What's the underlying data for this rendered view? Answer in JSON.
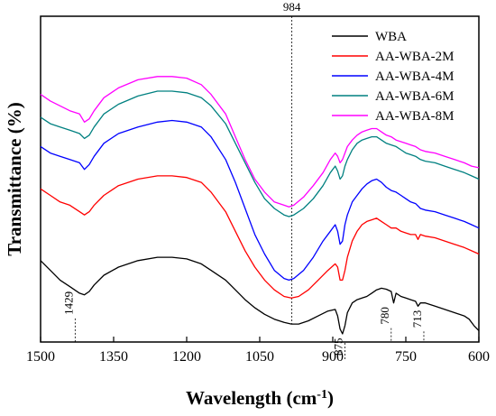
{
  "chart_data": {
    "type": "line",
    "xlabel": "Wavelength (cm",
    "xlabel_sup": "-1",
    "xlabel_close": ")",
    "ylabel": "Transmittance (%)",
    "xlim": [
      1500,
      600
    ],
    "x_reversed": true,
    "xticks": [
      1500,
      1350,
      1200,
      1050,
      900,
      750,
      600
    ],
    "ylim": [
      0,
      100
    ],
    "y_ticks_shown": false,
    "legend_position": "top-right",
    "series": [
      {
        "name": "WBA",
        "color": "#000000",
        "points": [
          [
            1500,
            25
          ],
          [
            1480,
            22
          ],
          [
            1460,
            19
          ],
          [
            1440,
            17
          ],
          [
            1420,
            15
          ],
          [
            1410,
            14.5
          ],
          [
            1400,
            15.5
          ],
          [
            1390,
            17.5
          ],
          [
            1370,
            20.5
          ],
          [
            1340,
            23
          ],
          [
            1300,
            25
          ],
          [
            1260,
            26
          ],
          [
            1230,
            26
          ],
          [
            1200,
            25.5
          ],
          [
            1170,
            24
          ],
          [
            1150,
            22
          ],
          [
            1120,
            19
          ],
          [
            1100,
            16
          ],
          [
            1080,
            13
          ],
          [
            1060,
            10.5
          ],
          [
            1040,
            8.5
          ],
          [
            1020,
            7
          ],
          [
            1000,
            6
          ],
          [
            985,
            5.5
          ],
          [
            970,
            5.5
          ],
          [
            950,
            6.5
          ],
          [
            930,
            8
          ],
          [
            910,
            9.5
          ],
          [
            895,
            10
          ],
          [
            890,
            8
          ],
          [
            885,
            4
          ],
          [
            880,
            2.5
          ],
          [
            875,
            5
          ],
          [
            870,
            9
          ],
          [
            860,
            12
          ],
          [
            850,
            13
          ],
          [
            840,
            13.5
          ],
          [
            830,
            14
          ],
          [
            820,
            15
          ],
          [
            810,
            16
          ],
          [
            800,
            16.5
          ],
          [
            790,
            16.2
          ],
          [
            780,
            15.5
          ],
          [
            775,
            12
          ],
          [
            770,
            15
          ],
          [
            760,
            14
          ],
          [
            750,
            13.5
          ],
          [
            740,
            13
          ],
          [
            730,
            12.5
          ],
          [
            725,
            11
          ],
          [
            720,
            12
          ],
          [
            710,
            12
          ],
          [
            690,
            11
          ],
          [
            670,
            10
          ],
          [
            650,
            9
          ],
          [
            630,
            8
          ],
          [
            620,
            7
          ],
          [
            610,
            5
          ],
          [
            600,
            3.5
          ]
        ]
      },
      {
        "name": "AA-WBA-2M",
        "color": "#ff0000",
        "points": [
          [
            1500,
            47
          ],
          [
            1480,
            45
          ],
          [
            1460,
            43
          ],
          [
            1440,
            42
          ],
          [
            1420,
            40
          ],
          [
            1410,
            39
          ],
          [
            1400,
            40
          ],
          [
            1390,
            42
          ],
          [
            1370,
            45
          ],
          [
            1340,
            48
          ],
          [
            1300,
            50
          ],
          [
            1260,
            51
          ],
          [
            1230,
            51
          ],
          [
            1200,
            50.5
          ],
          [
            1170,
            49
          ],
          [
            1150,
            46
          ],
          [
            1120,
            40
          ],
          [
            1100,
            34
          ],
          [
            1080,
            28
          ],
          [
            1060,
            23
          ],
          [
            1040,
            19
          ],
          [
            1020,
            16
          ],
          [
            1000,
            14
          ],
          [
            985,
            13.5
          ],
          [
            970,
            14
          ],
          [
            950,
            16
          ],
          [
            930,
            19
          ],
          [
            910,
            22
          ],
          [
            895,
            24
          ],
          [
            890,
            23
          ],
          [
            885,
            19
          ],
          [
            880,
            19
          ],
          [
            875,
            22
          ],
          [
            870,
            26
          ],
          [
            860,
            31
          ],
          [
            850,
            34
          ],
          [
            840,
            36
          ],
          [
            830,
            37
          ],
          [
            820,
            37.5
          ],
          [
            810,
            38
          ],
          [
            800,
            37
          ],
          [
            790,
            36
          ],
          [
            780,
            35
          ],
          [
            770,
            35
          ],
          [
            760,
            34
          ],
          [
            750,
            33.5
          ],
          [
            740,
            33
          ],
          [
            730,
            33
          ],
          [
            725,
            31.5
          ],
          [
            720,
            33
          ],
          [
            710,
            32.5
          ],
          [
            690,
            32
          ],
          [
            670,
            31
          ],
          [
            650,
            30
          ],
          [
            630,
            29
          ],
          [
            615,
            28
          ],
          [
            600,
            27
          ]
        ]
      },
      {
        "name": "AA-WBA-4M",
        "color": "#0000ff",
        "points": [
          [
            1500,
            60
          ],
          [
            1480,
            58
          ],
          [
            1460,
            57
          ],
          [
            1440,
            56
          ],
          [
            1420,
            55
          ],
          [
            1410,
            53
          ],
          [
            1400,
            54.5
          ],
          [
            1390,
            57
          ],
          [
            1370,
            61
          ],
          [
            1340,
            64
          ],
          [
            1300,
            66
          ],
          [
            1260,
            67.5
          ],
          [
            1230,
            68
          ],
          [
            1200,
            67.5
          ],
          [
            1170,
            66
          ],
          [
            1150,
            63
          ],
          [
            1120,
            56
          ],
          [
            1100,
            49
          ],
          [
            1080,
            41
          ],
          [
            1060,
            33
          ],
          [
            1040,
            27
          ],
          [
            1020,
            22
          ],
          [
            1000,
            19.5
          ],
          [
            990,
            19
          ],
          [
            980,
            19.5
          ],
          [
            960,
            22
          ],
          [
            940,
            26
          ],
          [
            920,
            31
          ],
          [
            905,
            34
          ],
          [
            895,
            36
          ],
          [
            890,
            34
          ],
          [
            885,
            30
          ],
          [
            880,
            31
          ],
          [
            875,
            36
          ],
          [
            870,
            39
          ],
          [
            860,
            43
          ],
          [
            850,
            45
          ],
          [
            840,
            47
          ],
          [
            830,
            48.5
          ],
          [
            820,
            49.5
          ],
          [
            810,
            50
          ],
          [
            800,
            49
          ],
          [
            790,
            47.5
          ],
          [
            780,
            46.5
          ],
          [
            770,
            46
          ],
          [
            760,
            45
          ],
          [
            750,
            44
          ],
          [
            740,
            43
          ],
          [
            730,
            42.5
          ],
          [
            720,
            41
          ],
          [
            710,
            40.5
          ],
          [
            690,
            40
          ],
          [
            670,
            39
          ],
          [
            650,
            38
          ],
          [
            630,
            37
          ],
          [
            615,
            36
          ],
          [
            600,
            35
          ]
        ]
      },
      {
        "name": "AA-WBA-6M",
        "color": "#008080",
        "points": [
          [
            1500,
            69
          ],
          [
            1480,
            67
          ],
          [
            1460,
            66
          ],
          [
            1440,
            65
          ],
          [
            1420,
            64
          ],
          [
            1410,
            62.5
          ],
          [
            1400,
            63.5
          ],
          [
            1390,
            66
          ],
          [
            1370,
            70
          ],
          [
            1340,
            73
          ],
          [
            1300,
            75.5
          ],
          [
            1260,
            77
          ],
          [
            1230,
            77
          ],
          [
            1200,
            76.5
          ],
          [
            1170,
            75
          ],
          [
            1150,
            72.5
          ],
          [
            1120,
            67
          ],
          [
            1100,
            61
          ],
          [
            1080,
            55
          ],
          [
            1060,
            49
          ],
          [
            1040,
            44
          ],
          [
            1020,
            41
          ],
          [
            1000,
            39
          ],
          [
            990,
            38.5
          ],
          [
            980,
            39
          ],
          [
            960,
            41
          ],
          [
            940,
            44
          ],
          [
            920,
            48
          ],
          [
            905,
            52
          ],
          [
            895,
            54
          ],
          [
            890,
            52.5
          ],
          [
            885,
            50
          ],
          [
            880,
            51
          ],
          [
            875,
            54
          ],
          [
            870,
            56
          ],
          [
            860,
            59
          ],
          [
            850,
            61
          ],
          [
            840,
            62
          ],
          [
            830,
            62.5
          ],
          [
            820,
            63
          ],
          [
            810,
            63
          ],
          [
            800,
            62
          ],
          [
            790,
            61
          ],
          [
            780,
            60.5
          ],
          [
            770,
            60
          ],
          [
            760,
            59
          ],
          [
            750,
            58
          ],
          [
            740,
            57.5
          ],
          [
            730,
            57
          ],
          [
            720,
            56
          ],
          [
            710,
            55.5
          ],
          [
            690,
            55
          ],
          [
            670,
            54
          ],
          [
            650,
            53
          ],
          [
            630,
            52
          ],
          [
            615,
            51
          ],
          [
            600,
            50
          ]
        ]
      },
      {
        "name": "AA-WBA-8M",
        "color": "#ff00ff",
        "points": [
          [
            1500,
            76
          ],
          [
            1480,
            74
          ],
          [
            1460,
            72.5
          ],
          [
            1440,
            71
          ],
          [
            1420,
            70
          ],
          [
            1410,
            67.5
          ],
          [
            1400,
            68.5
          ],
          [
            1390,
            71
          ],
          [
            1370,
            75
          ],
          [
            1340,
            78
          ],
          [
            1300,
            80.5
          ],
          [
            1260,
            81.5
          ],
          [
            1230,
            81.5
          ],
          [
            1200,
            81
          ],
          [
            1170,
            79
          ],
          [
            1150,
            76
          ],
          [
            1120,
            70
          ],
          [
            1100,
            63
          ],
          [
            1080,
            56
          ],
          [
            1060,
            50
          ],
          [
            1040,
            46
          ],
          [
            1020,
            43
          ],
          [
            1000,
            42
          ],
          [
            990,
            41.5
          ],
          [
            980,
            42
          ],
          [
            960,
            44.5
          ],
          [
            940,
            48
          ],
          [
            920,
            52
          ],
          [
            905,
            56
          ],
          [
            895,
            58
          ],
          [
            890,
            57
          ],
          [
            885,
            55
          ],
          [
            880,
            56
          ],
          [
            875,
            58
          ],
          [
            870,
            60
          ],
          [
            860,
            62
          ],
          [
            850,
            63.5
          ],
          [
            840,
            64.5
          ],
          [
            830,
            65
          ],
          [
            820,
            65.5
          ],
          [
            810,
            65.5
          ],
          [
            800,
            64.5
          ],
          [
            790,
            63.5
          ],
          [
            780,
            63
          ],
          [
            770,
            62
          ],
          [
            760,
            61.5
          ],
          [
            750,
            61
          ],
          [
            740,
            60.5
          ],
          [
            730,
            60
          ],
          [
            720,
            59
          ],
          [
            710,
            58.5
          ],
          [
            690,
            58
          ],
          [
            670,
            57
          ],
          [
            650,
            56
          ],
          [
            630,
            55
          ],
          [
            615,
            54
          ],
          [
            600,
            53.5
          ]
        ]
      }
    ],
    "annotations": [
      {
        "label": "984",
        "x": 984,
        "line_top": true,
        "y_end": 5.5,
        "label_position": "top"
      },
      {
        "label": "1429",
        "x": 1429,
        "y_start": 15,
        "label_rotated": true
      },
      {
        "label": "875",
        "x": 875,
        "y_start": 2.5,
        "label_rotated": true
      },
      {
        "label": "780",
        "x": 780,
        "y_start": 12,
        "label_rotated": true
      },
      {
        "label": "713",
        "x": 713,
        "y_start": 11,
        "label_rotated": true
      }
    ]
  }
}
